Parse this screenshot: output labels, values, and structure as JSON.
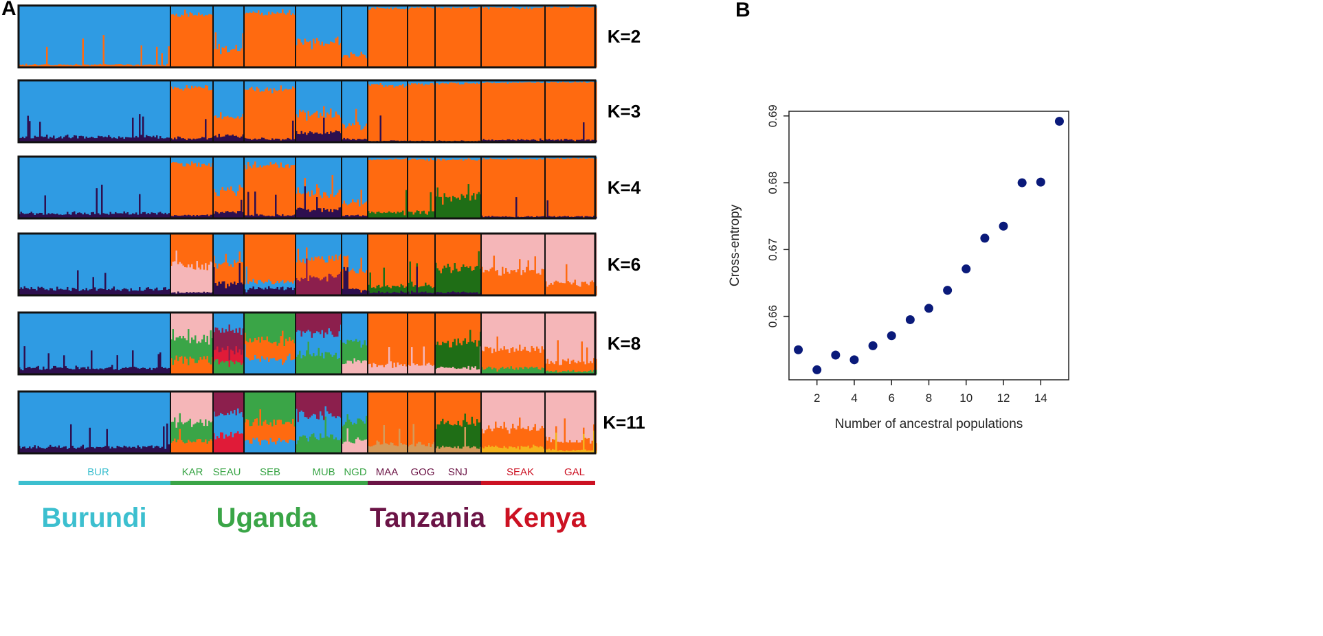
{
  "panel_labels": {
    "a": "A",
    "b": "B"
  },
  "colors": {
    "blue": "#2f9be3",
    "orange": "#ff6a10",
    "dark": "#2e0f4f",
    "green": "#1f6e16",
    "pink": "#f5b6b8",
    "light_green": "#3aa547",
    "maroon": "#8c1f4d",
    "red": "#e01b38",
    "yellow": "#f5b31c",
    "tan": "#d49a5a",
    "frame": "#111111",
    "point": "#0a1a7a"
  },
  "chart_data": [
    {
      "type": "stacked-bar",
      "title": "",
      "panel": "A",
      "k_labels": [
        "K=2",
        "K=3",
        "K=4",
        "K=6",
        "K=8",
        "K=11"
      ],
      "populations": [
        {
          "code": "BUR",
          "country": "Burundi"
        },
        {
          "code": "KAR",
          "country": "Uganda"
        },
        {
          "code": "SEAU",
          "country": "Uganda"
        },
        {
          "code": "SEB",
          "country": "Uganda"
        },
        {
          "code": "MUB",
          "country": "Uganda"
        },
        {
          "code": "NGD",
          "country": "Uganda"
        },
        {
          "code": "MAA",
          "country": "Tanzania"
        },
        {
          "code": "GOG",
          "country": "Tanzania"
        },
        {
          "code": "SNJ",
          "country": "Tanzania"
        },
        {
          "code": "SEAK",
          "country": "Kenya"
        },
        {
          "code": "GAL",
          "country": "Kenya"
        }
      ],
      "countries": [
        {
          "name": "Burundi",
          "color": "#3cbfcf"
        },
        {
          "name": "Uganda",
          "color": "#3aa547"
        },
        {
          "name": "Tanzania",
          "color": "#6b1446"
        },
        {
          "name": "Kenya",
          "color": "#cc1122"
        }
      ],
      "ancestry_proportions": {
        "K=2": [
          {
            "blue": 0.96,
            "orange": 0.04
          },
          {
            "blue": 0.15,
            "orange": 0.85
          },
          {
            "blue": 0.7,
            "orange": 0.3
          },
          {
            "blue": 0.12,
            "orange": 0.88
          },
          {
            "blue": 0.6,
            "orange": 0.4
          },
          {
            "blue": 0.8,
            "orange": 0.2
          },
          {
            "blue": 0.05,
            "orange": 0.95
          },
          {
            "blue": 0.04,
            "orange": 0.96
          },
          {
            "blue": 0.04,
            "orange": 0.96
          },
          {
            "blue": 0.04,
            "orange": 0.96
          },
          {
            "blue": 0.03,
            "orange": 0.97
          }
        ],
        "K=3": [
          {
            "blue": 0.92,
            "dark": 0.08
          },
          {
            "blue": 0.12,
            "orange": 0.82,
            "dark": 0.06
          },
          {
            "blue": 0.6,
            "orange": 0.3,
            "dark": 0.1
          },
          {
            "blue": 0.15,
            "orange": 0.8,
            "dark": 0.05
          },
          {
            "blue": 0.55,
            "orange": 0.3,
            "dark": 0.15
          },
          {
            "blue": 0.75,
            "orange": 0.2,
            "dark": 0.05
          },
          {
            "blue": 0.08,
            "orange": 0.9,
            "dark": 0.02
          },
          {
            "blue": 0.06,
            "orange": 0.92,
            "dark": 0.02
          },
          {
            "blue": 0.05,
            "orange": 0.93,
            "dark": 0.02
          },
          {
            "blue": 0.04,
            "orange": 0.92,
            "dark": 0.04
          },
          {
            "blue": 0.03,
            "orange": 0.93,
            "dark": 0.04
          }
        ],
        "K=4": [
          {
            "blue": 0.92,
            "dark": 0.08
          },
          {
            "blue": 0.12,
            "orange": 0.83,
            "dark": 0.05
          },
          {
            "blue": 0.55,
            "orange": 0.35,
            "dark": 0.1
          },
          {
            "blue": 0.15,
            "orange": 0.8,
            "dark": 0.05
          },
          {
            "blue": 0.6,
            "orange": 0.25,
            "dark": 0.15
          },
          {
            "blue": 0.75,
            "orange": 0.2,
            "dark": 0.05
          },
          {
            "blue": 0.05,
            "orange": 0.85,
            "green": 0.1
          },
          {
            "blue": 0.05,
            "orange": 0.85,
            "green": 0.1
          },
          {
            "blue": 0.05,
            "orange": 0.6,
            "green": 0.35
          },
          {
            "blue": 0.04,
            "orange": 0.93,
            "dark": 0.03
          },
          {
            "blue": 0.03,
            "orange": 0.94,
            "dark": 0.03
          }
        ],
        "K=6": [
          {
            "blue": 0.9,
            "dark": 0.1
          },
          {
            "orange": 0.5,
            "pink": 0.45,
            "dark": 0.05
          },
          {
            "blue": 0.5,
            "orange": 0.3,
            "dark": 0.2
          },
          {
            "orange": 0.8,
            "blue": 0.1,
            "dark": 0.1
          },
          {
            "blue": 0.4,
            "orange": 0.3,
            "maroon": 0.3
          },
          {
            "blue": 0.6,
            "orange": 0.3,
            "dark": 0.1
          },
          {
            "orange": 0.85,
            "green": 0.1,
            "dark": 0.05
          },
          {
            "orange": 0.85,
            "green": 0.1,
            "dark": 0.05
          },
          {
            "orange": 0.55,
            "green": 0.4,
            "dark": 0.05
          },
          {
            "pink": 0.6,
            "orange": 0.4
          },
          {
            "pink": 0.8,
            "orange": 0.2
          }
        ],
        "K=8": [
          {
            "blue": 0.9,
            "dark": 0.1
          },
          {
            "pink": 0.45,
            "light_green": 0.3,
            "orange": 0.25
          },
          {
            "blue": 0.3,
            "maroon": 0.3,
            "red": 0.2,
            "light_green": 0.2
          },
          {
            "light_green": 0.45,
            "orange": 0.3,
            "blue": 0.25
          },
          {
            "maroon": 0.35,
            "blue": 0.35,
            "light_green": 0.3
          },
          {
            "blue": 0.5,
            "light_green": 0.3,
            "pink": 0.2
          },
          {
            "orange": 0.85,
            "pink": 0.15
          },
          {
            "orange": 0.85,
            "pink": 0.15
          },
          {
            "orange": 0.5,
            "green": 0.4,
            "pink": 0.1
          },
          {
            "pink": 0.6,
            "orange": 0.3,
            "light_green": 0.1
          },
          {
            "pink": 0.8,
            "orange": 0.15,
            "light_green": 0.05
          }
        ],
        "K=11": [
          {
            "blue": 0.9,
            "dark": 0.1
          },
          {
            "pink": 0.5,
            "light_green": 0.3,
            "orange": 0.2
          },
          {
            "maroon": 0.35,
            "blue": 0.35,
            "red": 0.3
          },
          {
            "light_green": 0.5,
            "orange": 0.3,
            "blue": 0.2
          },
          {
            "maroon": 0.4,
            "blue": 0.35,
            "light_green": 0.25
          },
          {
            "blue": 0.5,
            "light_green": 0.3,
            "pink": 0.2
          },
          {
            "orange": 0.85,
            "tan": 0.15
          },
          {
            "orange": 0.85,
            "tan": 0.15
          },
          {
            "orange": 0.5,
            "green": 0.4,
            "tan": 0.1
          },
          {
            "pink": 0.6,
            "orange": 0.3,
            "yellow": 0.1
          },
          {
            "pink": 0.8,
            "orange": 0.15,
            "yellow": 0.05
          }
        ]
      }
    },
    {
      "type": "scatter",
      "title": "",
      "panel": "B",
      "xlabel": "Number of ancestral populations",
      "ylabel": "Cross-entropy",
      "x": [
        1,
        2,
        3,
        4,
        5,
        6,
        7,
        8,
        9,
        10,
        11,
        12,
        13,
        14,
        15
      ],
      "y": [
        0.655,
        0.652,
        0.6542,
        0.6535,
        0.6556,
        0.6571,
        0.6595,
        0.6612,
        0.6639,
        0.6671,
        0.6717,
        0.6735,
        0.68,
        0.6801,
        0.6892
      ],
      "xticks": [
        2,
        4,
        6,
        8,
        10,
        12,
        14
      ],
      "yticks": [
        0.66,
        0.67,
        0.68,
        0.69
      ],
      "xlim": [
        0.5,
        15.5
      ],
      "ylim": [
        0.6505,
        0.6907
      ],
      "grid": false
    }
  ]
}
